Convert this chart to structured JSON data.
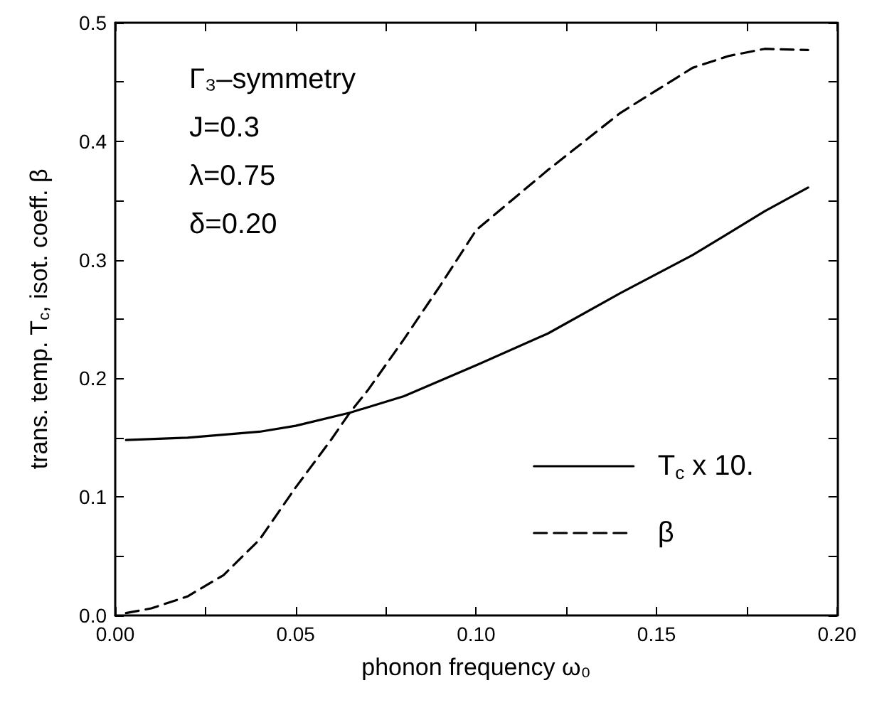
{
  "chart_data": {
    "type": "line",
    "xlabel": "phonon frequency ω₀",
    "ylabel": "trans. temp. T$_{c}$, isot. coeff. β",
    "annotations": [
      "Γ₃–symmetry",
      "J=0.3",
      "λ=0.75",
      "δ=0.20"
    ],
    "xlim": [
      0,
      0.2
    ],
    "xticks": [
      {
        "value": 0,
        "label": "0.00"
      },
      {
        "value": 0.025,
        "label": null
      },
      {
        "value": 0.05,
        "label": "0.05"
      },
      {
        "value": 0.075,
        "label": null
      },
      {
        "value": 0.1,
        "label": "0.10"
      },
      {
        "value": 0.125,
        "label": null
      },
      {
        "value": 0.15,
        "label": "0.15"
      },
      {
        "value": 0.175,
        "label": null
      },
      {
        "value": 0.2,
        "label": "0.20"
      }
    ],
    "ylim": [
      0,
      0.5
    ],
    "yticks": [
      {
        "value": 0,
        "label": "0.0"
      },
      {
        "value": 0.05,
        "label": null
      },
      0.1,
      {
        "value": 0.15,
        "label": null
      },
      0.2,
      {
        "value": 0.25,
        "label": null
      },
      0.3,
      {
        "value": 0.35,
        "label": null
      },
      0.4,
      {
        "value": 0.45,
        "label": null
      },
      0.5
    ],
    "grid": false,
    "legend": "right",
    "marker": "none",
    "series": [
      {
        "name": "T$_{c}$ x 10.",
        "color": "#000000",
        "line_style": "solid",
        "x": [
          0.003,
          0.02,
          0.04,
          0.05,
          0.065,
          0.08,
          0.1,
          0.12,
          0.14,
          0.16,
          0.18,
          0.192
        ],
        "values": [
          0.148,
          0.15,
          0.155,
          0.16,
          0.171,
          0.185,
          0.211,
          0.238,
          0.272,
          0.304,
          0.341,
          0.361
        ]
      },
      {
        "name": "β",
        "color": "#000000",
        "line_style": "dashed",
        "x": [
          0.003,
          0.01,
          0.02,
          0.03,
          0.04,
          0.05,
          0.06,
          0.065,
          0.07,
          0.08,
          0.09,
          0.1,
          0.12,
          0.14,
          0.16,
          0.17,
          0.18,
          0.192
        ],
        "values": [
          0.002,
          0.006,
          0.016,
          0.034,
          0.064,
          0.108,
          0.149,
          0.171,
          0.19,
          0.233,
          0.278,
          0.325,
          0.376,
          0.424,
          0.462,
          0.472,
          0.478,
          0.477
        ]
      }
    ]
  }
}
